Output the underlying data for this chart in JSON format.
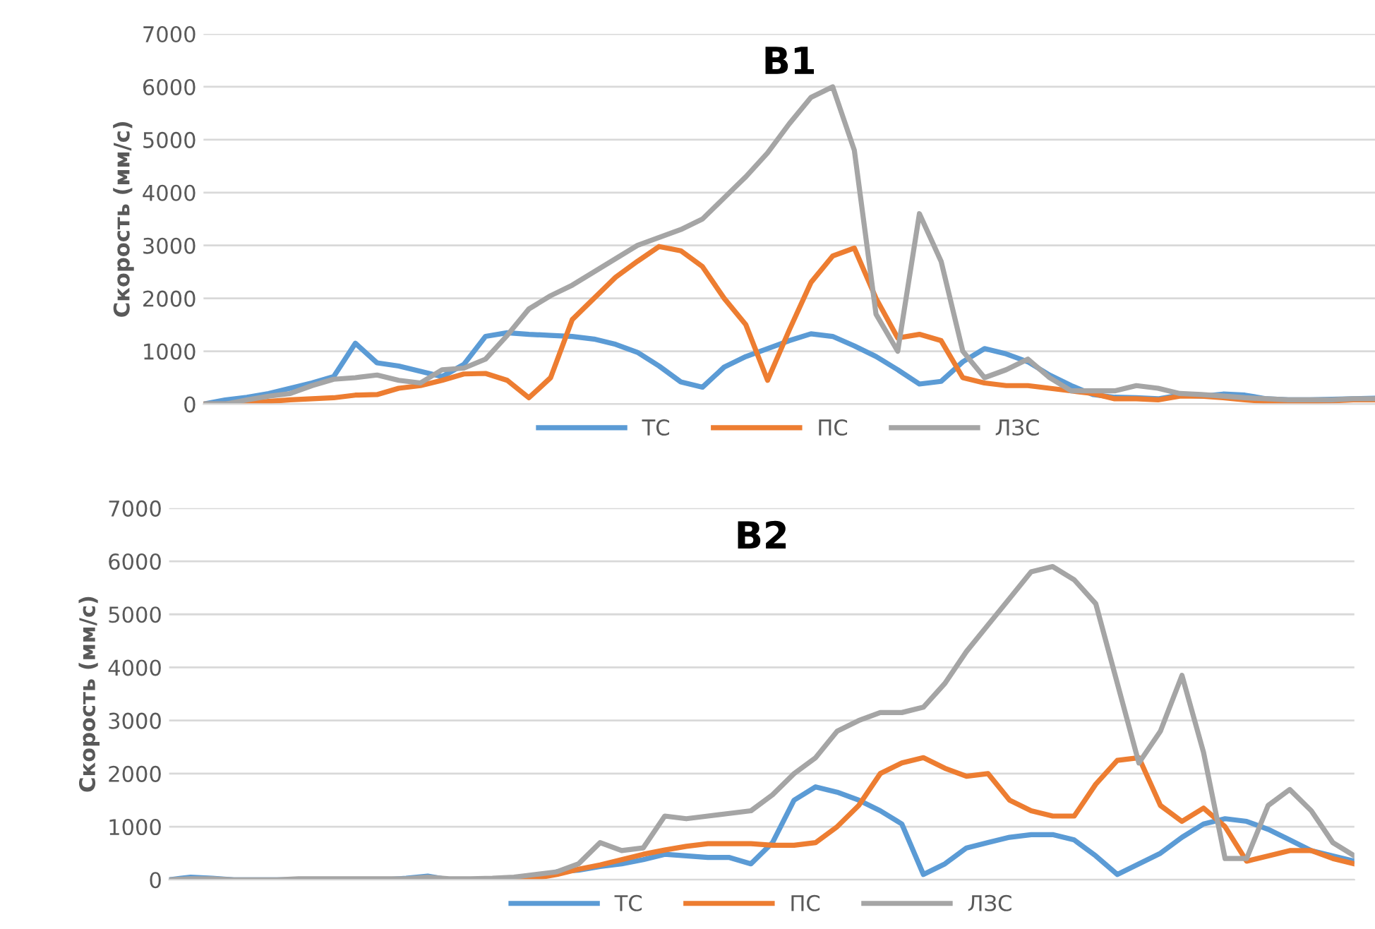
{
  "chart_data": [
    {
      "type": "line",
      "title": "В1",
      "ylabel": "Скорость (мм/с)",
      "categories": [
        null,
        null,
        null,
        null,
        null,
        null,
        null,
        null,
        null,
        null,
        null,
        null,
        null,
        null,
        null,
        null,
        null,
        null,
        null,
        null,
        null,
        null,
        null,
        null,
        null,
        null,
        null,
        null,
        null,
        null,
        null,
        null,
        null,
        null,
        null,
        null,
        null,
        null,
        null,
        null,
        null,
        null,
        null,
        null,
        null,
        null,
        null,
        null,
        null,
        null,
        null,
        null,
        null,
        null,
        null
      ],
      "ylim": [
        0,
        7000
      ],
      "yticks": [
        0,
        1000,
        2000,
        3000,
        4000,
        5000,
        6000,
        7000
      ],
      "grid": "y",
      "legend": "bottom",
      "marker": "none",
      "line_style": "solid",
      "series": [
        {
          "name": "ТС",
          "color": "#5b9bd5",
          "values": [
            0,
            80,
            130,
            200,
            300,
            400,
            520,
            1150,
            780,
            720,
            620,
            520,
            750,
            1280,
            1350,
            1320,
            1300,
            1280,
            1230,
            1130,
            980,
            720,
            420,
            320,
            700,
            900,
            1050,
            1200,
            1330,
            1280,
            1100,
            900,
            650,
            380,
            430,
            800,
            1050,
            950,
            800,
            550,
            350,
            180,
            130,
            120,
            100,
            170,
            150,
            190,
            170,
            100,
            80,
            80,
            90,
            100,
            110
          ]
        },
        {
          "name": "ПС",
          "color": "#ed7d31",
          "values": [
            0,
            0,
            20,
            50,
            80,
            100,
            120,
            170,
            180,
            300,
            350,
            450,
            570,
            580,
            450,
            120,
            500,
            1600,
            2000,
            2400,
            2700,
            2980,
            2900,
            2600,
            2000,
            1500,
            450,
            1400,
            2300,
            2800,
            2950,
            2000,
            1250,
            1320,
            1200,
            500,
            400,
            350,
            350,
            300,
            250,
            200,
            100,
            100,
            80,
            150,
            150,
            120,
            80,
            50,
            50,
            50,
            60,
            80,
            80
          ]
        },
        {
          "name": "ЛЗС",
          "color": "#a5a5a5",
          "values": [
            0,
            0,
            80,
            150,
            200,
            350,
            470,
            500,
            550,
            450,
            400,
            650,
            680,
            850,
            1300,
            1800,
            2050,
            2250,
            2500,
            2750,
            3000,
            3150,
            3300,
            3500,
            3900,
            4300,
            4750,
            5300,
            5800,
            6000,
            4800,
            1700,
            1000,
            3600,
            2700,
            1000,
            500,
            650,
            850,
            500,
            250,
            250,
            250,
            350,
            300,
            200,
            180,
            150,
            120,
            100,
            80,
            80,
            80,
            100,
            100
          ]
        }
      ]
    },
    {
      "type": "line",
      "title": "В2",
      "ylabel": "Скорость (мм/с)",
      "categories": [
        null,
        null,
        null,
        null,
        null,
        null,
        null,
        null,
        null,
        null,
        null,
        null,
        null,
        null,
        null,
        null,
        null,
        null,
        null,
        null,
        null,
        null,
        null,
        null,
        null,
        null,
        null,
        null,
        null,
        null,
        null,
        null,
        null,
        null,
        null,
        null,
        null,
        null,
        null,
        null,
        null,
        null,
        null,
        null,
        null,
        null,
        null,
        null,
        null,
        null,
        null,
        null,
        null,
        null,
        null,
        null
      ],
      "ylim": [
        0,
        7000
      ],
      "yticks": [
        0,
        1000,
        2000,
        3000,
        4000,
        5000,
        6000,
        7000
      ],
      "grid": "y",
      "legend": "bottom",
      "marker": "none",
      "line_style": "solid",
      "series": [
        {
          "name": "ТС",
          "color": "#5b9bd5",
          "values": [
            0,
            50,
            30,
            0,
            0,
            0,
            0,
            0,
            0,
            0,
            0,
            30,
            70,
            0,
            0,
            0,
            0,
            30,
            150,
            180,
            250,
            300,
            380,
            480,
            450,
            420,
            420,
            300,
            700,
            1500,
            1750,
            1650,
            1500,
            1300,
            1050,
            100,
            300,
            600,
            700,
            800,
            850,
            850,
            750,
            450,
            100,
            300,
            500,
            800,
            1050,
            1150,
            1100,
            950,
            750,
            550,
            450,
            350
          ]
        },
        {
          "name": "ПС",
          "color": "#ed7d31",
          "values": [
            null,
            null,
            null,
            null,
            null,
            null,
            null,
            null,
            null,
            null,
            null,
            null,
            null,
            null,
            null,
            0,
            0,
            30,
            100,
            200,
            280,
            380,
            480,
            560,
            630,
            680,
            680,
            680,
            650,
            650,
            700,
            1000,
            1400,
            2000,
            2200,
            2300,
            2100,
            1950,
            2000,
            1500,
            1300,
            1200,
            1200,
            1800,
            2250,
            2300,
            1400,
            1100,
            1350,
            1000,
            350,
            450,
            550,
            550,
            400,
            300
          ]
        },
        {
          "name": "ЛЗС",
          "color": "#a5a5a5",
          "values": [
            0,
            20,
            20,
            0,
            0,
            0,
            20,
            20,
            20,
            20,
            20,
            20,
            50,
            20,
            20,
            30,
            50,
            100,
            150,
            300,
            700,
            550,
            600,
            1200,
            1150,
            1200,
            1250,
            1300,
            1600,
            2000,
            2300,
            2800,
            3000,
            3150,
            3150,
            3250,
            3700,
            4300,
            4800,
            5300,
            5800,
            5900,
            5650,
            5200,
            3700,
            2200,
            2800,
            3850,
            2400,
            400,
            400,
            1400,
            1700,
            1300,
            700,
            450
          ]
        }
      ]
    }
  ]
}
